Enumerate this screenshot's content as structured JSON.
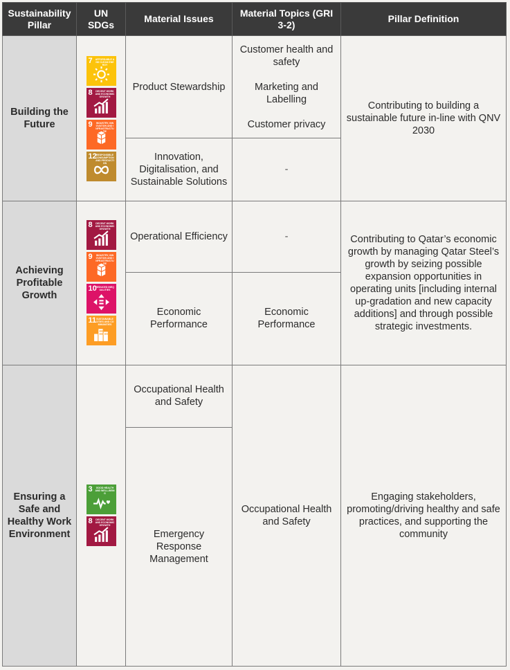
{
  "headers": {
    "pillar": "Sustainability Pillar",
    "sdgs": "UN SDGs",
    "issues": "Material Issues",
    "topics": "Material Topics (GRI 3-2)",
    "definition": "Pillar Definition"
  },
  "rows": [
    {
      "pillar": "Building the Future",
      "sdgs": [
        {
          "number": "7",
          "caption": "Affordable and clean energy",
          "color": "#FCC30B",
          "icon": "sun-icon"
        },
        {
          "number": "8",
          "caption": "Decent work and economic growth",
          "color": "#A21942",
          "icon": "growth-chart-icon"
        },
        {
          "number": "9",
          "caption": "Industry, innovation and infrastructure",
          "color": "#FD6925",
          "icon": "cubes-icon"
        },
        {
          "number": "12",
          "caption": "Responsible consumption and production",
          "color": "#BF8B2E",
          "icon": "infinity-icon"
        }
      ],
      "issues": [
        {
          "label": "Product Stewardship",
          "topics": [
            "Customer health and safety",
            "Marketing and Labelling",
            "Customer privacy"
          ]
        },
        {
          "label": "Innovation, Digitalisation, and Sustainable Solutions",
          "topics": [
            "-"
          ]
        }
      ],
      "definition": "Contributing to building a sustainable future in-line with QNV 2030"
    },
    {
      "pillar": "Achieving Profitable Growth",
      "sdgs": [
        {
          "number": "8",
          "caption": "Decent work and economic growth",
          "color": "#A21942",
          "icon": "growth-chart-icon"
        },
        {
          "number": "9",
          "caption": "Industry, innovation and infrastructure",
          "color": "#FD6925",
          "icon": "cubes-icon"
        },
        {
          "number": "10",
          "caption": "Reduced inequalities",
          "color": "#DD1367",
          "icon": "equality-arrows-icon"
        },
        {
          "number": "11",
          "caption": "Sustainable cities and communities",
          "color": "#FD9D24",
          "icon": "city-buildings-icon"
        }
      ],
      "issues": [
        {
          "label": "Operational Efficiency",
          "topics": [
            "-"
          ]
        },
        {
          "label": "Economic Performance",
          "topics": [
            "Economic Performance"
          ]
        }
      ],
      "definition": "Contributing to Qatar’s economic growth by managing Qatar Steel’s growth by seizing possible expansion opportunities in operating units [including internal up-gradation and new capacity additions] and through possible strategic investments."
    },
    {
      "pillar": "Ensuring a Safe and Healthy Work Environment",
      "sdgs": [
        {
          "number": "3",
          "caption": "Good health and well-being",
          "color": "#4C9F38",
          "icon": "heartbeat-icon"
        },
        {
          "number": "8",
          "caption": "Decent work and economic growth",
          "color": "#A21942",
          "icon": "growth-chart-icon"
        }
      ],
      "issues": [
        {
          "label": "Occupational Health and Safety"
        },
        {
          "label": "Emergency Response Management"
        }
      ],
      "shared_topic": "Occupational Health and Safety",
      "definition": "Engaging stakeholders, promoting/driving healthy and safe practices, and supporting the community"
    }
  ]
}
